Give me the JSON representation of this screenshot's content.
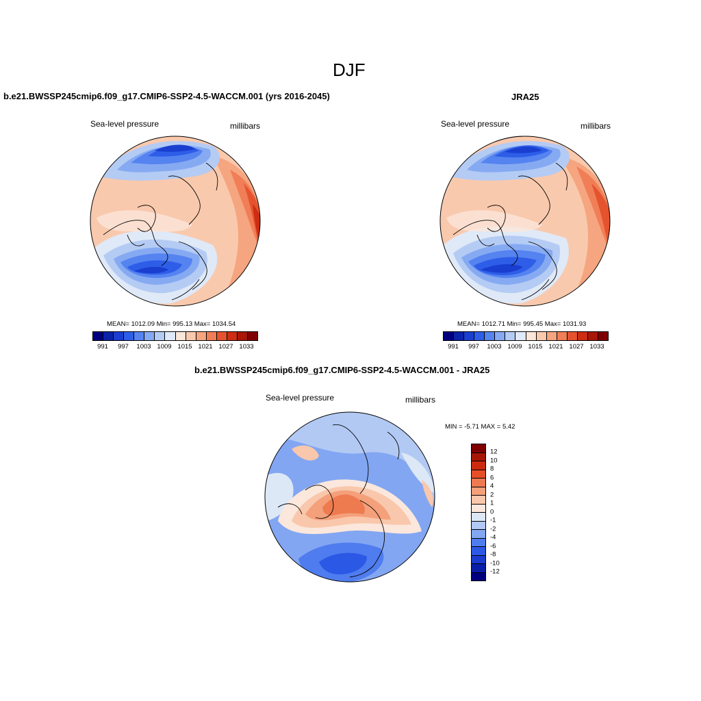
{
  "figure_title": "DJF",
  "colors": {
    "abs_palette": [
      "#00007f",
      "#0a23a8",
      "#1a3fd0",
      "#2e5ee8",
      "#5583f0",
      "#86aaf2",
      "#b4cbf4",
      "#dfe9f7",
      "#fbe6da",
      "#f9c9ad",
      "#f5a57f",
      "#f07e56",
      "#e5532e",
      "#cd2d12",
      "#a81707",
      "#7f0000"
    ],
    "diff_palette": [
      "#00007f",
      "#0a1ea8",
      "#1a3ad0",
      "#2c58e6",
      "#4f7cee",
      "#82a6f2",
      "#b2c9f4",
      "#dde8f7",
      "#fbe7dc",
      "#f9c7ab",
      "#f4a07a",
      "#ee7a50",
      "#e54f28",
      "#cc2a0e",
      "#a61606",
      "#7f0000"
    ]
  },
  "panels": [
    {
      "id": "model",
      "title": "b.e21.BWSSP245cmip6.f09_g17.CMIP6-SSP2-4.5-WACCM.001 (yrs 2016-2045)",
      "left_label": "Sea-level pressure",
      "right_label": "millibars",
      "stats": "MEAN= 1012.09  Min= 995.13  Max= 1034.54",
      "colorbar_ticks": [
        "991",
        "997",
        "1003",
        "1009",
        "1015",
        "1021",
        "1027",
        "1033"
      ]
    },
    {
      "id": "obs",
      "title": "JRA25",
      "left_label": "Sea-level pressure",
      "right_label": "millibars",
      "stats": "MEAN= 1012.71  Min= 995.45  Max= 1031.93",
      "colorbar_ticks": [
        "991",
        "997",
        "1003",
        "1009",
        "1015",
        "1021",
        "1027",
        "1033"
      ]
    },
    {
      "id": "diff",
      "title": "b.e21.BWSSP245cmip6.f09_g17.CMIP6-SSP2-4.5-WACCM.001 - JRA25",
      "left_label": "Sea-level pressure",
      "right_label": "millibars",
      "stats": "MIN =  -5.71 MAX =   5.42",
      "colorbar_ticks": [
        "12",
        "10",
        "8",
        "6",
        "4",
        "2",
        "1",
        "0",
        "-1",
        "-2",
        "-4",
        "-6",
        "-8",
        "-10",
        "-12"
      ]
    }
  ]
}
